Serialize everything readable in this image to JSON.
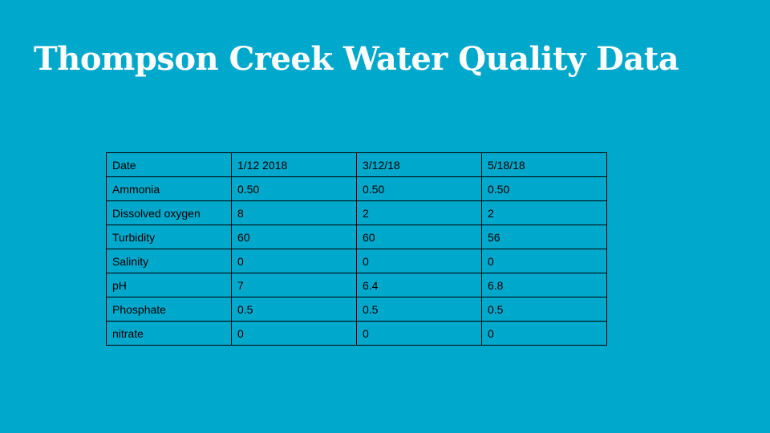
{
  "slide": {
    "title": "Thompson Creek Water Quality Data"
  },
  "colors": {
    "background": "#00a8cc",
    "title_text": "#ffffff",
    "table_border": "#000000"
  },
  "table": {
    "rows": [
      [
        "Date",
        "1/12 2018",
        "3/12/18",
        "5/18/18"
      ],
      [
        "Ammonia",
        "0.50",
        "0.50",
        "0.50"
      ],
      [
        "Dissolved oxygen",
        "8",
        "2",
        "2"
      ],
      [
        "Turbidity",
        "60",
        "60",
        "56"
      ],
      [
        "Salinity",
        "0",
        "0",
        "0"
      ],
      [
        "pH",
        "7",
        "6.4",
        "6.8"
      ],
      [
        "Phosphate",
        "0.5",
        "0.5",
        "0.5"
      ],
      [
        "nitrate",
        "0",
        "0",
        "0"
      ]
    ]
  }
}
